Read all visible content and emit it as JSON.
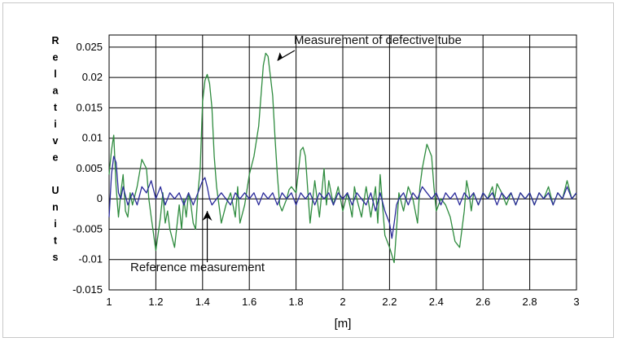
{
  "chart_data": {
    "type": "line",
    "xlabel": "[m]",
    "ylabel": "Relative Units",
    "xlim": [
      1,
      3
    ],
    "ylim": [
      -0.015,
      0.027
    ],
    "grid": true,
    "x_ticks": [
      "1",
      "1.2",
      "1.4",
      "1.6",
      "1.8",
      "2",
      "2.2",
      "2.4",
      "2.6",
      "2.8",
      "3"
    ],
    "y_ticks": [
      "0.025",
      "0.02",
      "0.015",
      "0.01",
      "0.005",
      "0",
      "-0.005",
      "-0.01",
      "-0.015"
    ],
    "annotations": [
      {
        "text": "Measurement of defective tube",
        "x": 1.72,
        "y": 0.0228
      },
      {
        "text": "Reference measurement",
        "x": 1.42,
        "y": -0.002
      }
    ],
    "series": [
      {
        "color": "#2e8b3e",
        "points": [
          [
            1.0,
            0.004
          ],
          [
            1.01,
            0.008
          ],
          [
            1.02,
            0.0105
          ],
          [
            1.03,
            0.002
          ],
          [
            1.04,
            -0.003
          ],
          [
            1.05,
            0.001
          ],
          [
            1.06,
            0.004
          ],
          [
            1.07,
            -0.002
          ],
          [
            1.08,
            -0.003
          ],
          [
            1.09,
            0.001
          ],
          [
            1.1,
            -0.001
          ],
          [
            1.12,
            0.002
          ],
          [
            1.14,
            0.0065
          ],
          [
            1.16,
            0.005
          ],
          [
            1.17,
            0.0
          ],
          [
            1.18,
            -0.003
          ],
          [
            1.2,
            -0.0085
          ],
          [
            1.22,
            -0.003
          ],
          [
            1.23,
            0.001
          ],
          [
            1.24,
            -0.004
          ],
          [
            1.25,
            -0.002
          ],
          [
            1.26,
            -0.005
          ],
          [
            1.28,
            -0.008
          ],
          [
            1.3,
            -0.001
          ],
          [
            1.31,
            -0.005
          ],
          [
            1.32,
            0.0
          ],
          [
            1.33,
            -0.003
          ],
          [
            1.34,
            0.001
          ],
          [
            1.35,
            -0.001
          ],
          [
            1.36,
            -0.004
          ],
          [
            1.37,
            -0.005
          ],
          [
            1.38,
            0.001
          ],
          [
            1.39,
            0.005
          ],
          [
            1.4,
            0.016
          ],
          [
            1.41,
            0.0195
          ],
          [
            1.42,
            0.0205
          ],
          [
            1.43,
            0.019
          ],
          [
            1.44,
            0.015
          ],
          [
            1.45,
            0.007
          ],
          [
            1.46,
            0.002
          ],
          [
            1.48,
            -0.004
          ],
          [
            1.5,
            -0.001
          ],
          [
            1.52,
            0.001
          ],
          [
            1.54,
            -0.003
          ],
          [
            1.55,
            0.002
          ],
          [
            1.56,
            -0.004
          ],
          [
            1.58,
            -0.001
          ],
          [
            1.6,
            0.004
          ],
          [
            1.62,
            0.007
          ],
          [
            1.64,
            0.012
          ],
          [
            1.66,
            0.022
          ],
          [
            1.67,
            0.024
          ],
          [
            1.68,
            0.0235
          ],
          [
            1.7,
            0.017
          ],
          [
            1.71,
            0.01
          ],
          [
            1.72,
            0.004
          ],
          [
            1.73,
            -0.001
          ],
          [
            1.74,
            -0.002
          ],
          [
            1.76,
            0.0
          ],
          [
            1.77,
            0.0015
          ],
          [
            1.78,
            0.002
          ],
          [
            1.8,
            0.001
          ],
          [
            1.82,
            0.008
          ],
          [
            1.83,
            0.0085
          ],
          [
            1.84,
            0.007
          ],
          [
            1.86,
            -0.004
          ],
          [
            1.88,
            0.003
          ],
          [
            1.9,
            -0.003
          ],
          [
            1.92,
            0.005
          ],
          [
            1.93,
            -0.001
          ],
          [
            1.94,
            0.003
          ],
          [
            1.96,
            -0.001
          ],
          [
            1.98,
            0.002
          ],
          [
            2.0,
            -0.002
          ],
          [
            2.02,
            0.001
          ],
          [
            2.04,
            -0.003
          ],
          [
            2.05,
            0.002
          ],
          [
            2.06,
            0.0
          ],
          [
            2.08,
            -0.003
          ],
          [
            2.1,
            0.002
          ],
          [
            2.12,
            -0.003
          ],
          [
            2.14,
            0.002
          ],
          [
            2.15,
            -0.004
          ],
          [
            2.16,
            0.004
          ],
          [
            2.18,
            -0.006
          ],
          [
            2.2,
            -0.008
          ],
          [
            2.22,
            -0.0105
          ],
          [
            2.23,
            -0.005
          ],
          [
            2.24,
            0.001
          ],
          [
            2.26,
            -0.002
          ],
          [
            2.28,
            0.002
          ],
          [
            2.3,
            0.0
          ],
          [
            2.32,
            -0.004
          ],
          [
            2.33,
            0.002
          ],
          [
            2.34,
            0.005
          ],
          [
            2.36,
            0.009
          ],
          [
            2.38,
            0.007
          ],
          [
            2.39,
            0.002
          ],
          [
            2.4,
            -0.002
          ],
          [
            2.42,
            0.0
          ],
          [
            2.44,
            -0.001
          ],
          [
            2.46,
            -0.003
          ],
          [
            2.47,
            -0.005
          ],
          [
            2.48,
            -0.007
          ],
          [
            2.5,
            -0.008
          ],
          [
            2.52,
            -0.002
          ],
          [
            2.53,
            0.003
          ],
          [
            2.54,
            0.001
          ],
          [
            2.55,
            -0.002
          ],
          [
            2.56,
            0.001
          ],
          [
            2.58,
            -0.001
          ],
          [
            2.6,
            0.001
          ],
          [
            2.62,
            0.0
          ],
          [
            2.64,
            0.002
          ],
          [
            2.65,
            0.0
          ],
          [
            2.66,
            0.0025
          ],
          [
            2.68,
            0.001
          ],
          [
            2.7,
            -0.001
          ],
          [
            2.72,
            0.001
          ],
          [
            2.74,
            -0.001
          ],
          [
            2.76,
            0.001
          ],
          [
            2.78,
            0.0
          ],
          [
            2.8,
            0.001
          ],
          [
            2.82,
            -0.001
          ],
          [
            2.84,
            0.001
          ],
          [
            2.86,
            0.0
          ],
          [
            2.88,
            0.002
          ],
          [
            2.9,
            -0.001
          ],
          [
            2.92,
            0.001
          ],
          [
            2.94,
            0.0
          ],
          [
            2.96,
            0.003
          ],
          [
            2.98,
            0.0
          ],
          [
            3.0,
            0.001
          ]
        ]
      },
      {
        "color": "#2a2a9a",
        "points": [
          [
            1.0,
            -0.003
          ],
          [
            1.01,
            0.004
          ],
          [
            1.02,
            0.007
          ],
          [
            1.03,
            0.006
          ],
          [
            1.04,
            0.001
          ],
          [
            1.05,
            0.0
          ],
          [
            1.06,
            0.002
          ],
          [
            1.08,
            -0.001
          ],
          [
            1.1,
            0.001
          ],
          [
            1.12,
            -0.001
          ],
          [
            1.14,
            0.002
          ],
          [
            1.16,
            0.001
          ],
          [
            1.18,
            0.003
          ],
          [
            1.2,
            0.0
          ],
          [
            1.22,
            0.002
          ],
          [
            1.24,
            -0.001
          ],
          [
            1.26,
            0.001
          ],
          [
            1.28,
            0.0
          ],
          [
            1.3,
            0.001
          ],
          [
            1.32,
            -0.001
          ],
          [
            1.34,
            0.001
          ],
          [
            1.36,
            -0.001
          ],
          [
            1.38,
            0.001
          ],
          [
            1.4,
            0.003
          ],
          [
            1.41,
            0.0035
          ],
          [
            1.42,
            0.002
          ],
          [
            1.43,
            0.0
          ],
          [
            1.44,
            -0.001
          ],
          [
            1.46,
            0.0
          ],
          [
            1.48,
            0.001
          ],
          [
            1.5,
            0.0
          ],
          [
            1.52,
            -0.001
          ],
          [
            1.54,
            0.001
          ],
          [
            1.56,
            0.0
          ],
          [
            1.58,
            0.001
          ],
          [
            1.6,
            0.0
          ],
          [
            1.62,
            0.001
          ],
          [
            1.64,
            -0.001
          ],
          [
            1.66,
            0.001
          ],
          [
            1.68,
            0.0
          ],
          [
            1.7,
            0.001
          ],
          [
            1.72,
            -0.001
          ],
          [
            1.74,
            0.001
          ],
          [
            1.76,
            0.0
          ],
          [
            1.78,
            0.001
          ],
          [
            1.8,
            -0.001
          ],
          [
            1.82,
            0.001
          ],
          [
            1.84,
            0.0
          ],
          [
            1.86,
            0.001
          ],
          [
            1.88,
            -0.001
          ],
          [
            1.9,
            0.001
          ],
          [
            1.92,
            0.0
          ],
          [
            1.94,
            0.001
          ],
          [
            1.96,
            -0.001
          ],
          [
            1.98,
            0.001
          ],
          [
            2.0,
            0.0
          ],
          [
            2.02,
            0.001
          ],
          [
            2.04,
            -0.001
          ],
          [
            2.06,
            0.001
          ],
          [
            2.08,
            0.0
          ],
          [
            2.1,
            -0.001
          ],
          [
            2.12,
            0.001
          ],
          [
            2.14,
            -0.002
          ],
          [
            2.16,
            0.001
          ],
          [
            2.18,
            -0.002
          ],
          [
            2.2,
            -0.004
          ],
          [
            2.21,
            -0.0065
          ],
          [
            2.22,
            -0.004
          ],
          [
            2.23,
            -0.001
          ],
          [
            2.24,
            0.0
          ],
          [
            2.26,
            0.001
          ],
          [
            2.28,
            -0.001
          ],
          [
            2.3,
            0.001
          ],
          [
            2.32,
            0.0
          ],
          [
            2.34,
            0.002
          ],
          [
            2.36,
            0.001
          ],
          [
            2.38,
            0.0
          ],
          [
            2.4,
            0.001
          ],
          [
            2.42,
            -0.001
          ],
          [
            2.44,
            0.001
          ],
          [
            2.46,
            0.0
          ],
          [
            2.48,
            0.001
          ],
          [
            2.5,
            -0.001
          ],
          [
            2.52,
            0.001
          ],
          [
            2.54,
            0.0
          ],
          [
            2.56,
            0.001
          ],
          [
            2.58,
            -0.001
          ],
          [
            2.6,
            0.001
          ],
          [
            2.62,
            0.0
          ],
          [
            2.64,
            0.001
          ],
          [
            2.66,
            -0.001
          ],
          [
            2.68,
            0.001
          ],
          [
            2.7,
            0.0
          ],
          [
            2.72,
            0.001
          ],
          [
            2.74,
            -0.001
          ],
          [
            2.76,
            0.001
          ],
          [
            2.78,
            0.0
          ],
          [
            2.8,
            0.001
          ],
          [
            2.82,
            -0.001
          ],
          [
            2.84,
            0.001
          ],
          [
            2.86,
            0.0
          ],
          [
            2.88,
            0.001
          ],
          [
            2.9,
            -0.001
          ],
          [
            2.92,
            0.001
          ],
          [
            2.94,
            0.0
          ],
          [
            2.96,
            0.002
          ],
          [
            2.98,
            0.0
          ],
          [
            3.0,
            0.001
          ]
        ]
      }
    ]
  }
}
